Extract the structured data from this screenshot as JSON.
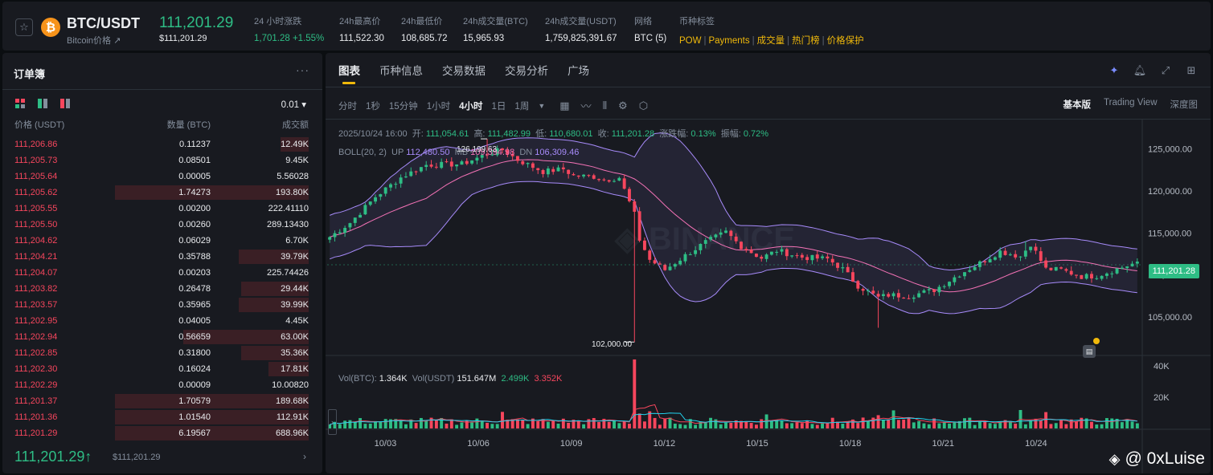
{
  "ticker": {
    "symbol": "BTC/USDT",
    "coin_sub": "Bitcoin价格 ↗",
    "coin_logo": "₿",
    "last_price": "111,201.29",
    "last_price_usd": "$111,201.29",
    "stats": [
      {
        "label": "24 小时涨跌",
        "value": "1,701.28 +1.55%",
        "positive": true
      },
      {
        "label": "24h最高价",
        "value": "111,522.30"
      },
      {
        "label": "24h最低价",
        "value": "108,685.72"
      },
      {
        "label": "24h成交量(BTC)",
        "value": "15,965.93"
      },
      {
        "label": "24h成交量(USDT)",
        "value": "1,759,825,391.67"
      },
      {
        "label": "网络",
        "value": "BTC (5)"
      }
    ],
    "tags_label": "币种标签",
    "tags": [
      "POW",
      "Payments",
      "成交量",
      "热门榜",
      "价格保护"
    ]
  },
  "orderbook": {
    "title": "订单簿",
    "precision": "0.01 ▾",
    "headers": {
      "price": "价格 (USDT)",
      "qty": "数量 (BTC)",
      "total": "成交额"
    },
    "rows": [
      {
        "price": "111,206.86",
        "qty": "0.11237",
        "total": "12.49K",
        "depth": 0.14
      },
      {
        "price": "111,205.73",
        "qty": "0.08501",
        "total": "9.45K",
        "depth": 0.0
      },
      {
        "price": "111,205.64",
        "qty": "0.00005",
        "total": "5.56028",
        "depth": 0.0
      },
      {
        "price": "111,205.62",
        "qty": "1.74273",
        "total": "193.80K",
        "depth": 0.97
      },
      {
        "price": "111,205.55",
        "qty": "0.00200",
        "total": "222.41110",
        "depth": 0.0
      },
      {
        "price": "111,205.50",
        "qty": "0.00260",
        "total": "289.13430",
        "depth": 0.0
      },
      {
        "price": "111,204.62",
        "qty": "0.06029",
        "total": "6.70K",
        "depth": 0.0
      },
      {
        "price": "111,204.21",
        "qty": "0.35788",
        "total": "39.79K",
        "depth": 0.35
      },
      {
        "price": "111,204.07",
        "qty": "0.00203",
        "total": "225.74426",
        "depth": 0.0
      },
      {
        "price": "111,203.82",
        "qty": "0.26478",
        "total": "29.44K",
        "depth": 0.34
      },
      {
        "price": "111,203.57",
        "qty": "0.35965",
        "total": "39.99K",
        "depth": 0.35
      },
      {
        "price": "111,202.95",
        "qty": "0.04005",
        "total": "4.45K",
        "depth": 0.0
      },
      {
        "price": "111,202.94",
        "qty": "0.56659",
        "total": "63.00K",
        "depth": 0.63
      },
      {
        "price": "111,202.85",
        "qty": "0.31800",
        "total": "35.36K",
        "depth": 0.34
      },
      {
        "price": "111,202.30",
        "qty": "0.16024",
        "total": "17.81K",
        "depth": 0.2
      },
      {
        "price": "111,202.29",
        "qty": "0.00009",
        "total": "10.00820",
        "depth": 0.0
      },
      {
        "price": "111,201.37",
        "qty": "1.70579",
        "total": "189.68K",
        "depth": 0.97
      },
      {
        "price": "111,201.36",
        "qty": "1.01540",
        "total": "112.91K",
        "depth": 0.97
      },
      {
        "price": "111,201.29",
        "qty": "6.19567",
        "total": "688.96K",
        "depth": 0.97
      }
    ],
    "last_price": "111,201.29↑",
    "last_price_usd": "$111,201.29"
  },
  "chart_panel": {
    "tabs": [
      "图表",
      "币种信息",
      "交易数据",
      "交易分析",
      "广场"
    ],
    "timeframes": [
      "分时",
      "1秒",
      "15分钟",
      "1小时",
      "4小时",
      "1日",
      "1周"
    ],
    "active_timeframe": "4小时",
    "views": [
      "基本版",
      "Trading View",
      "深度图"
    ],
    "active_view": "基本版",
    "ohlc": {
      "date": "2025/10/24 16:00",
      "open_label": "开:",
      "open": "111,054.61",
      "high_label": "高:",
      "high": "111,482.99",
      "low_label": "低:",
      "low": "110,680.01",
      "close_label": "收:",
      "close": "111,201.28",
      "change_label": "涨跌幅:",
      "change": "0.13%",
      "amp_label": "振幅:",
      "amp": "0.72%"
    },
    "boll": {
      "label": "BOLL(20, 2)",
      "up_label": "UP",
      "up": "112,480.50",
      "mb_label": "MB",
      "mb": "109,394.98",
      "dn_label": "DN",
      "dn": "106,309.46"
    },
    "vol": {
      "btc_label": "Vol(BTC):",
      "btc": "1.364K",
      "usdt_label": "Vol(USDT)",
      "usdt": "151.647M",
      "ma1": "2.499K",
      "ma2": "3.352K"
    },
    "high_mark": "126,199.63",
    "low_mark": "102,000.00",
    "price_tag": "111,201.28",
    "watermark": "@ 0xLuise"
  },
  "chart_data": {
    "type": "candlestick",
    "interval": "4h",
    "x_ticks": [
      "10/03",
      "10/06",
      "10/09",
      "10/12",
      "10/15",
      "10/18",
      "10/21",
      "10/24"
    ],
    "y_ticks": [
      125000,
      120000,
      115000,
      110000,
      105000
    ],
    "ylim": [
      100500,
      128500
    ],
    "vol_ticks": [
      "40K",
      "20K"
    ],
    "vol_max": 45000,
    "anchors": [
      [
        0,
        114500
      ],
      [
        4,
        116200
      ],
      [
        9,
        119300
      ],
      [
        14,
        121600
      ],
      [
        19,
        123100
      ],
      [
        26,
        123200
      ],
      [
        31,
        124400
      ],
      [
        34,
        124900
      ],
      [
        37,
        123700
      ],
      [
        42,
        122300
      ],
      [
        46,
        122600
      ],
      [
        48,
        121800
      ],
      [
        52,
        121700
      ],
      [
        54,
        121300
      ],
      [
        57,
        121600
      ],
      [
        60,
        117200
      ],
      [
        61,
        114200
      ],
      [
        63,
        111800
      ],
      [
        66,
        110600
      ],
      [
        70,
        112300
      ],
      [
        74,
        113900
      ],
      [
        78,
        115100
      ],
      [
        81,
        113400
      ],
      [
        85,
        112000
      ],
      [
        88,
        112900
      ],
      [
        93,
        112100
      ],
      [
        98,
        111900
      ],
      [
        101,
        110700
      ],
      [
        104,
        108700
      ],
      [
        108,
        107300
      ],
      [
        110,
        107600
      ],
      [
        114,
        107500
      ],
      [
        119,
        108200
      ],
      [
        124,
        110100
      ],
      [
        128,
        111400
      ],
      [
        132,
        112800
      ],
      [
        136,
        112200
      ],
      [
        138,
        113700
      ],
      [
        141,
        110700
      ],
      [
        144,
        110600
      ],
      [
        148,
        109800
      ],
      [
        151,
        109900
      ],
      [
        155,
        110700
      ],
      [
        158,
        111300
      ]
    ],
    "spikes": [
      {
        "i": 31,
        "high": 126199.63
      },
      {
        "i": 60,
        "low": 102000.0
      },
      {
        "i": 108,
        "low": 103700
      },
      {
        "i": 137,
        "high": 114000
      }
    ],
    "series_colors": {
      "up": "#2ebd85",
      "down": "#f6465d",
      "boll_band": "#a78bfa",
      "boll_mid": "#f472b6",
      "vol_ma1": "#f6465d",
      "vol_ma2": "#22d3ee"
    }
  }
}
